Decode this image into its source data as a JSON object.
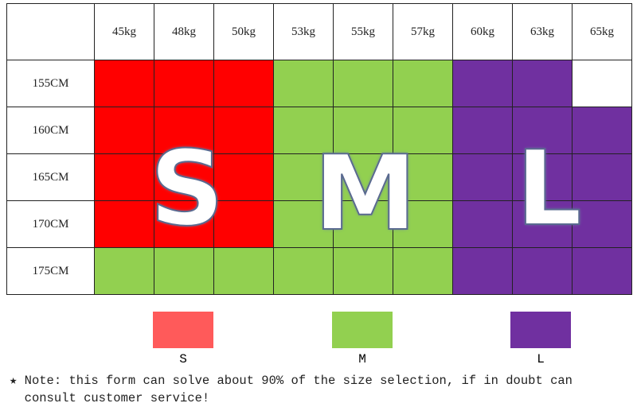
{
  "colors": {
    "S": "#ff0000",
    "M": "#92d050",
    "L": "#7030a0",
    "empty": "#ffffff"
  },
  "table": {
    "corner": "",
    "weights": [
      "45kg",
      "48kg",
      "50kg",
      "53kg",
      "55kg",
      "57kg",
      "60kg",
      "63kg",
      "65kg"
    ],
    "rows": [
      {
        "height": "155CM",
        "sizes": [
          "S",
          "S",
          "S",
          "M",
          "M",
          "M",
          "L",
          "L",
          ""
        ]
      },
      {
        "height": "160CM",
        "sizes": [
          "S",
          "S",
          "S",
          "M",
          "M",
          "M",
          "L",
          "L",
          "L"
        ]
      },
      {
        "height": "165CM",
        "sizes": [
          "S",
          "S",
          "S",
          "M",
          "M",
          "M",
          "L",
          "L",
          "L"
        ]
      },
      {
        "height": "170CM",
        "sizes": [
          "S",
          "S",
          "S",
          "M",
          "M",
          "M",
          "L",
          "L",
          "L"
        ]
      },
      {
        "height": "175CM",
        "sizes": [
          "M",
          "M",
          "M",
          "M",
          "M",
          "M",
          "L",
          "L",
          "L"
        ]
      }
    ]
  },
  "overlay": {
    "s": "S",
    "m": "M",
    "l": "L"
  },
  "legend": [
    {
      "label": "S",
      "color": "#ff5a5a"
    },
    {
      "label": "M",
      "color": "#92d050"
    },
    {
      "label": "L",
      "color": "#7030a0"
    }
  ],
  "note": {
    "icon": "star-icon",
    "star": "★",
    "text": "Note: this form can solve about 90% of the size selection, if in doubt can consult customer service!"
  }
}
